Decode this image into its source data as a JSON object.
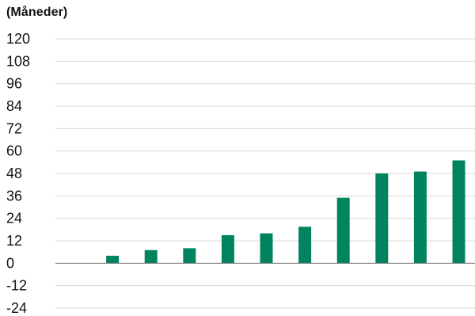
{
  "chart_data": {
    "type": "bar",
    "title": "",
    "unit_label": "(Måneder)",
    "xlabel": "",
    "ylabel": "",
    "ylim": [
      -24,
      120
    ],
    "y_ticks": [
      "120",
      "108",
      "96",
      "84",
      "72",
      "60",
      "48",
      "36",
      "24",
      "12",
      "0",
      "-12",
      "-24"
    ],
    "grid": true,
    "bar_color": "#00845F",
    "grid_color": "#D9D9D9",
    "zero_line_color": "#6E6E6E",
    "category_slots": 11,
    "values": [
      null,
      4,
      7,
      8,
      15,
      16,
      19.5,
      35,
      48,
      49,
      55
    ]
  }
}
